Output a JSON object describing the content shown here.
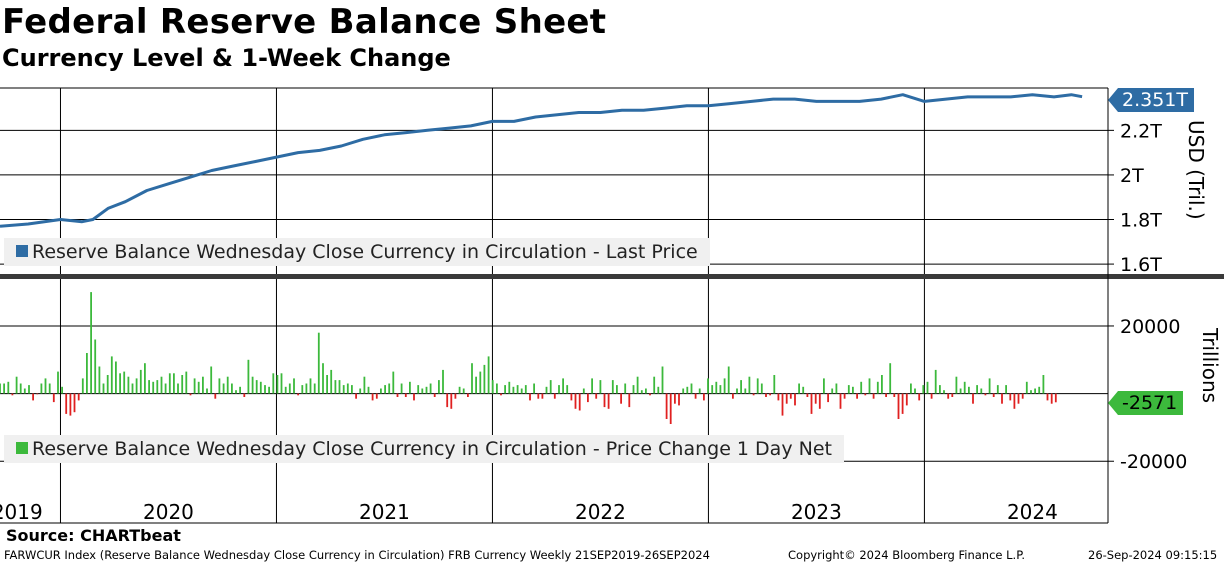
{
  "title": "Federal Reserve Balance Sheet",
  "subtitle": "Currency Level & 1-Week Change",
  "source": "Source: CHARTbeat",
  "footer_left": "FARWCUR Index (Reserve Balance Wednesday Close Currency in Circulation) FRB Currency  Weekly 21SEP2019-26SEP2024",
  "footer_mid": "Copyright© 2024 Bloomberg Finance L.P.",
  "footer_right": "26-Sep-2024 09:15:15",
  "colors": {
    "level": "#2e6ca4",
    "up": "#3cb93c",
    "down": "#e02020",
    "flag_level": "#2e6ca4",
    "flag_change": "#3cb93c"
  },
  "chart_data": [
    {
      "type": "line",
      "ylabel": "USD (Tril.)",
      "legend": "Reserve Balance Wednesday Close Currency in Circulation - Last Price",
      "last_value_label": "2.351T",
      "ylim": [
        1.56,
        2.39
      ],
      "y_ticks": [
        {
          "value": 1.6,
          "label": "1.6T"
        },
        {
          "value": 1.8,
          "label": "1.8T"
        },
        {
          "value": 2.0,
          "label": "2T"
        },
        {
          "value": 2.2,
          "label": "2.2T"
        }
      ],
      "x": [
        2019.72,
        2019.85,
        2020.0,
        2020.1,
        2020.15,
        2020.22,
        2020.3,
        2020.4,
        2020.5,
        2020.6,
        2020.7,
        2020.8,
        2020.9,
        2021.0,
        2021.1,
        2021.2,
        2021.3,
        2021.4,
        2021.5,
        2021.6,
        2021.7,
        2021.8,
        2021.9,
        2022.0,
        2022.1,
        2022.2,
        2022.3,
        2022.4,
        2022.5,
        2022.6,
        2022.7,
        2022.8,
        2022.9,
        2023.0,
        2023.1,
        2023.2,
        2023.3,
        2023.4,
        2023.5,
        2023.6,
        2023.7,
        2023.8,
        2023.9,
        2024.0,
        2024.1,
        2024.2,
        2024.3,
        2024.4,
        2024.5,
        2024.6,
        2024.68,
        2024.73
      ],
      "y": [
        1.77,
        1.78,
        1.8,
        1.79,
        1.8,
        1.85,
        1.88,
        1.93,
        1.96,
        1.99,
        2.02,
        2.04,
        2.06,
        2.08,
        2.1,
        2.11,
        2.13,
        2.16,
        2.18,
        2.19,
        2.2,
        2.21,
        2.22,
        2.24,
        2.24,
        2.26,
        2.27,
        2.28,
        2.28,
        2.29,
        2.29,
        2.3,
        2.31,
        2.31,
        2.32,
        2.33,
        2.34,
        2.34,
        2.33,
        2.33,
        2.33,
        2.34,
        2.36,
        2.33,
        2.34,
        2.35,
        2.35,
        2.35,
        2.36,
        2.35,
        2.36,
        2.351
      ]
    },
    {
      "type": "bar",
      "ylabel": "Trillions",
      "legend": "Reserve Balance Wednesday Close Currency in Circulation - Price Change 1 Day Net",
      "last_value_label": "-2571",
      "ylim": [
        -22000,
        33000
      ],
      "y_ticks": [
        {
          "value": 20000,
          "label": "20000"
        },
        {
          "value": 0,
          "label": "0"
        },
        {
          "value": -20000,
          "label": "-20000"
        }
      ],
      "x_start": 2019.72,
      "x_step": 0.01917,
      "values": [
        3000,
        3000,
        3500,
        -500,
        5000,
        3000,
        1500,
        2500,
        -2000,
        -200,
        3000,
        4500,
        3000,
        -2500,
        6500,
        2000,
        -6000,
        -6500,
        -5500,
        -2000,
        4500,
        12000,
        30000,
        16000,
        8000,
        3000,
        5500,
        11000,
        9500,
        6000,
        6500,
        5000,
        3000,
        4500,
        7000,
        9000,
        4000,
        3500,
        4000,
        5000,
        3000,
        6000,
        6000,
        3000,
        5500,
        6500,
        -500,
        4500,
        3500,
        5000,
        1500,
        8000,
        -1500,
        4500,
        3000,
        5000,
        3000,
        1000,
        2000,
        -1000,
        10000,
        5000,
        4000,
        3500,
        2500,
        2000,
        6000,
        5500,
        6000,
        2000,
        3000,
        4500,
        -500,
        2500,
        3000,
        4500,
        3000,
        18000,
        9000,
        5500,
        7000,
        4000,
        4000,
        2500,
        3000,
        2500,
        -1500,
        1500,
        5000,
        2000,
        -2000,
        -1500,
        1500,
        2500,
        3000,
        6500,
        -1000,
        3000,
        -1000,
        3500,
        -2000,
        2500,
        1500,
        2000,
        3000,
        -1000,
        4000,
        7000,
        -4000,
        -4500,
        -1500,
        2000,
        1500,
        -1000,
        9000,
        5000,
        6500,
        8500,
        11000,
        4000,
        3000,
        -500,
        2500,
        3500,
        2000,
        2500,
        1500,
        2500,
        -2000,
        3000,
        -1500,
        -1500,
        2000,
        4000,
        -1500,
        2500,
        4500,
        2500,
        -2000,
        -4500,
        -5000,
        1500,
        -2500,
        4500,
        -1500,
        4000,
        -4000,
        -4500,
        4000,
        2500,
        -3000,
        3000,
        -4000,
        2500,
        5000,
        1000,
        1500,
        -500,
        5000,
        2000,
        8000,
        -7500,
        -9000,
        -3000,
        -3500,
        1500,
        2000,
        3000,
        -1500,
        1500,
        -2000,
        4500,
        2500,
        3500,
        2500,
        4500,
        8000,
        -1500,
        1500,
        4000,
        1500,
        5000,
        -500,
        4500,
        3000,
        -1000,
        -500,
        5500,
        -2000,
        -6500,
        -3000,
        -1500,
        -3500,
        3000,
        2000,
        -1000,
        -6000,
        -3000,
        -4500,
        4500,
        -2500,
        1500,
        3000,
        -4500,
        -1500,
        2500,
        2000,
        -1500,
        3500,
        -500,
        4500,
        -1500,
        3500,
        5500,
        -1000,
        9000,
        -1000,
        -7500,
        -6000,
        -3500,
        3000,
        1500,
        -2000,
        2500,
        3500,
        -1500,
        7000,
        2500,
        1000,
        -1500,
        -1000,
        5000,
        1500,
        3500,
        2000,
        -3000,
        2500,
        1500,
        -500,
        4500,
        -1000,
        2500,
        -3000,
        2500,
        -2000,
        -4500,
        -3000,
        -1500,
        3500,
        1000,
        1500,
        2000,
        5500,
        -2000,
        -3000,
        -2571
      ]
    }
  ],
  "x_axis": {
    "labels": [
      "2019",
      "2020",
      "2021",
      "2022",
      "2023",
      "2024"
    ],
    "label_positions": [
      2019.8,
      2020.5,
      2021.5,
      2022.5,
      2023.5,
      2024.5
    ],
    "year_lines": [
      2020.0,
      2021.0,
      2022.0,
      2023.0,
      2024.0
    ],
    "xlim": [
      2019.72,
      2024.85
    ]
  }
}
